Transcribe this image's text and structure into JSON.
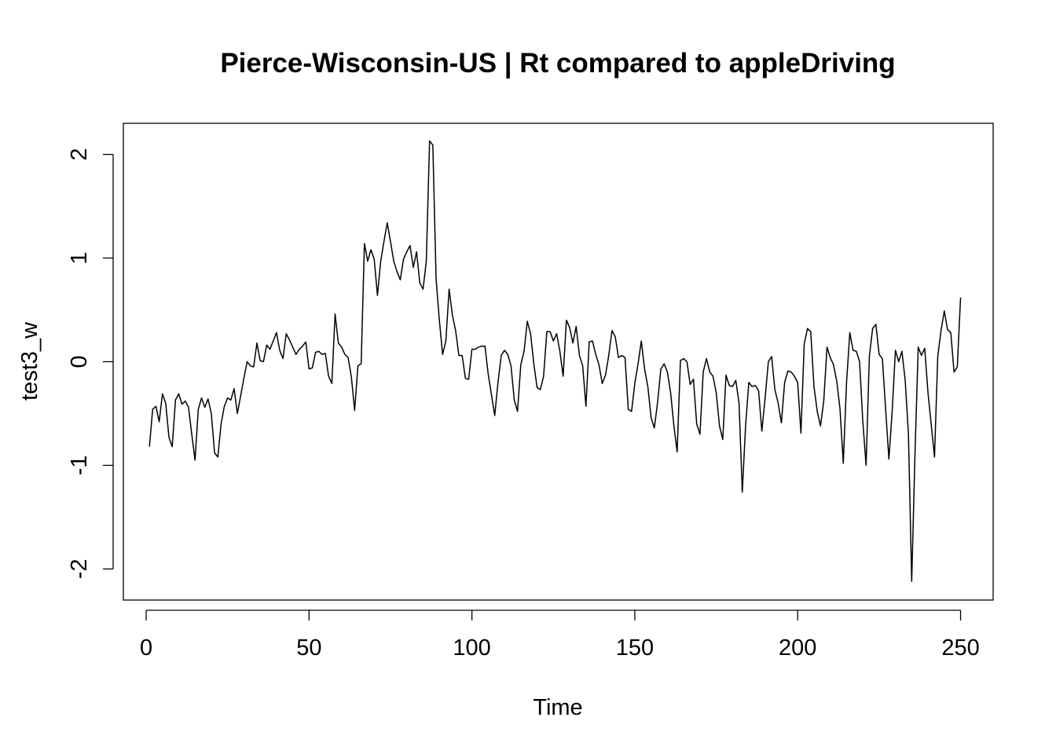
{
  "chart_data": {
    "type": "line",
    "title": "Pierce-Wisconsin-US | Rt compared to appleDriving",
    "xlabel": "Time",
    "ylabel": "test3_w",
    "xlim": [
      -7,
      260
    ],
    "ylim": [
      -2.3,
      2.3
    ],
    "x_ticks": [
      0,
      50,
      100,
      150,
      200,
      250
    ],
    "x_tick_labels": [
      "0",
      "50",
      "100",
      "150",
      "200",
      "250"
    ],
    "y_ticks": [
      -2,
      -1,
      0,
      1,
      2
    ],
    "y_tick_labels": [
      "-2",
      "-1",
      "0",
      "1",
      "2"
    ],
    "grid": false,
    "series": [
      {
        "name": "test3_w",
        "x_start": 1,
        "values": [
          -0.82,
          -0.46,
          -0.43,
          -0.58,
          -0.31,
          -0.4,
          -0.73,
          -0.82,
          -0.37,
          -0.31,
          -0.41,
          -0.38,
          -0.44,
          -0.7,
          -0.95,
          -0.46,
          -0.35,
          -0.44,
          -0.36,
          -0.5,
          -0.88,
          -0.92,
          -0.6,
          -0.43,
          -0.35,
          -0.37,
          -0.26,
          -0.5,
          -0.33,
          -0.16,
          0.0,
          -0.04,
          -0.05,
          0.18,
          0.01,
          0.0,
          0.16,
          0.12,
          0.2,
          0.28,
          0.11,
          0.03,
          0.27,
          0.21,
          0.14,
          0.07,
          0.12,
          0.15,
          0.19,
          -0.07,
          -0.06,
          0.09,
          0.1,
          0.07,
          0.08,
          -0.14,
          -0.21,
          0.46,
          0.18,
          0.14,
          0.07,
          0.04,
          -0.15,
          -0.47,
          -0.04,
          -0.02,
          1.14,
          0.97,
          1.08,
          0.99,
          0.64,
          0.97,
          1.16,
          1.34,
          1.16,
          0.97,
          0.87,
          0.79,
          0.99,
          1.06,
          1.12,
          0.91,
          1.06,
          0.76,
          0.7,
          0.97,
          2.13,
          2.09,
          0.8,
          0.4,
          0.07,
          0.2,
          0.7,
          0.45,
          0.3,
          0.06,
          0.06,
          -0.16,
          -0.17,
          0.12,
          0.12,
          0.14,
          0.15,
          0.15,
          -0.12,
          -0.32,
          -0.52,
          -0.2,
          0.06,
          0.11,
          0.07,
          -0.04,
          -0.37,
          -0.48,
          -0.03,
          0.1,
          0.39,
          0.27,
          -0.02,
          -0.25,
          -0.27,
          -0.14,
          0.29,
          0.29,
          0.2,
          0.27,
          0.1,
          -0.14,
          0.4,
          0.33,
          0.18,
          0.34,
          0.06,
          -0.04,
          -0.43,
          0.19,
          0.2,
          0.07,
          -0.03,
          -0.21,
          -0.13,
          0.06,
          0.3,
          0.24,
          0.04,
          0.06,
          0.04,
          -0.46,
          -0.48,
          -0.21,
          -0.02,
          0.2,
          -0.07,
          -0.24,
          -0.54,
          -0.64,
          -0.39,
          -0.07,
          -0.02,
          -0.1,
          -0.3,
          -0.62,
          -0.87,
          0.01,
          0.03,
          0.0,
          -0.22,
          -0.17,
          -0.6,
          -0.7,
          -0.1,
          0.03,
          -0.1,
          -0.14,
          -0.3,
          -0.62,
          -0.75,
          -0.13,
          -0.23,
          -0.24,
          -0.18,
          -0.4,
          -1.26,
          -0.62,
          -0.2,
          -0.24,
          -0.23,
          -0.28,
          -0.67,
          -0.35,
          0.0,
          0.05,
          -0.27,
          -0.4,
          -0.59,
          -0.2,
          -0.09,
          -0.1,
          -0.14,
          -0.2,
          -0.69,
          0.17,
          0.32,
          0.29,
          -0.24,
          -0.48,
          -0.62,
          -0.38,
          0.14,
          0.04,
          -0.03,
          -0.19,
          -0.46,
          -0.98,
          -0.2,
          0.28,
          0.11,
          0.1,
          0.0,
          -0.58,
          -1.0,
          0.05,
          0.32,
          0.36,
          0.07,
          0.03,
          -0.46,
          -0.94,
          -0.48,
          0.11,
          0.0,
          0.1,
          -0.18,
          -0.7,
          -2.12,
          -0.9,
          0.14,
          0.06,
          0.13,
          -0.3,
          -0.61,
          -0.92,
          0.05,
          0.3,
          0.49,
          0.31,
          0.28,
          -0.1,
          -0.05,
          0.62
        ]
      }
    ],
    "line_color": "#000000"
  }
}
